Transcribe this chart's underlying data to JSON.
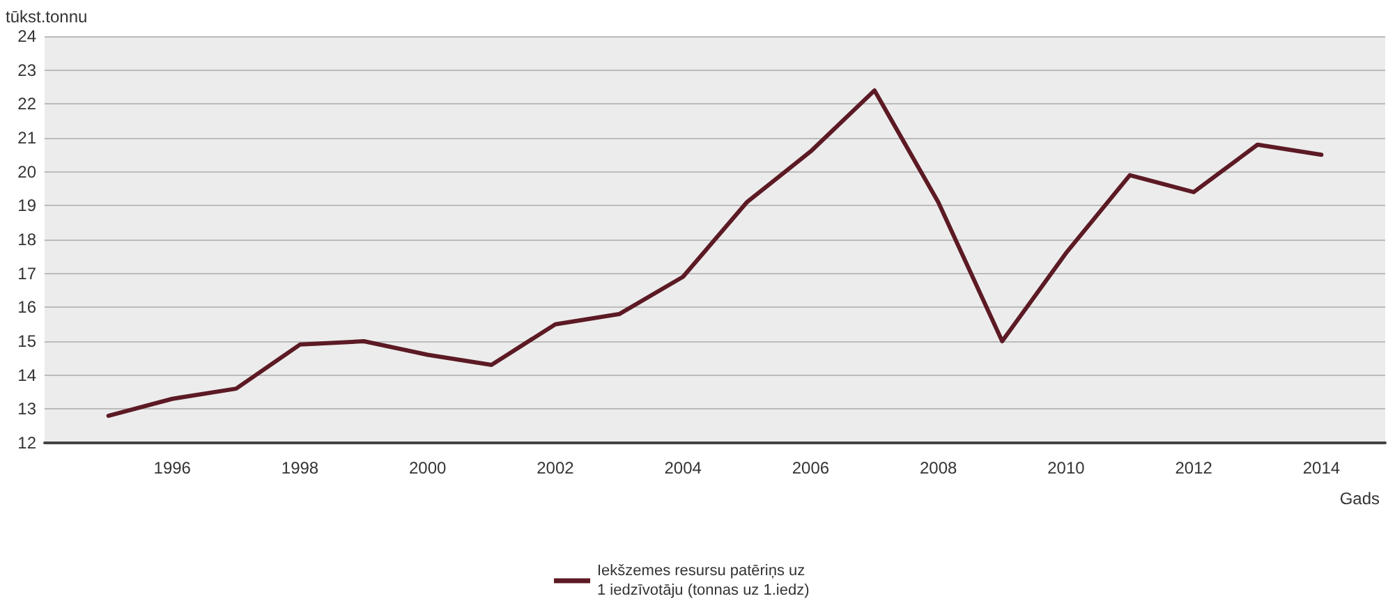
{
  "chart_data": {
    "type": "line",
    "xlabel": "Gads",
    "ylabel": "tūkst.tonnu",
    "x": [
      1995,
      1996,
      1997,
      1998,
      1999,
      2000,
      2001,
      2002,
      2003,
      2004,
      2005,
      2006,
      2007,
      2008,
      2009,
      2010,
      2011,
      2012,
      2013,
      2014
    ],
    "series": [
      {
        "name": "Iekšzemes resursu patēriņs uz 1 iedzīvotāju (tonnas uz 1.iedz)",
        "color": "#5c1a24",
        "values": [
          12.8,
          13.3,
          13.6,
          14.9,
          15.0,
          14.6,
          14.3,
          15.5,
          15.8,
          16.9,
          19.1,
          20.6,
          22.4,
          19.1,
          15.0,
          17.6,
          19.9,
          19.4,
          20.8,
          20.5
        ]
      }
    ],
    "xlim": [
      1994,
      2015
    ],
    "xticks": [
      1996,
      1998,
      2000,
      2002,
      2004,
      2006,
      2008,
      2010,
      2012,
      2014
    ],
    "ylim": [
      12,
      24
    ],
    "yticks": [
      12,
      13,
      14,
      15,
      16,
      17,
      18,
      19,
      20,
      21,
      22,
      23,
      24
    ],
    "grid": "y",
    "legend": "bottom",
    "marker": "none",
    "line_style": "solid"
  }
}
